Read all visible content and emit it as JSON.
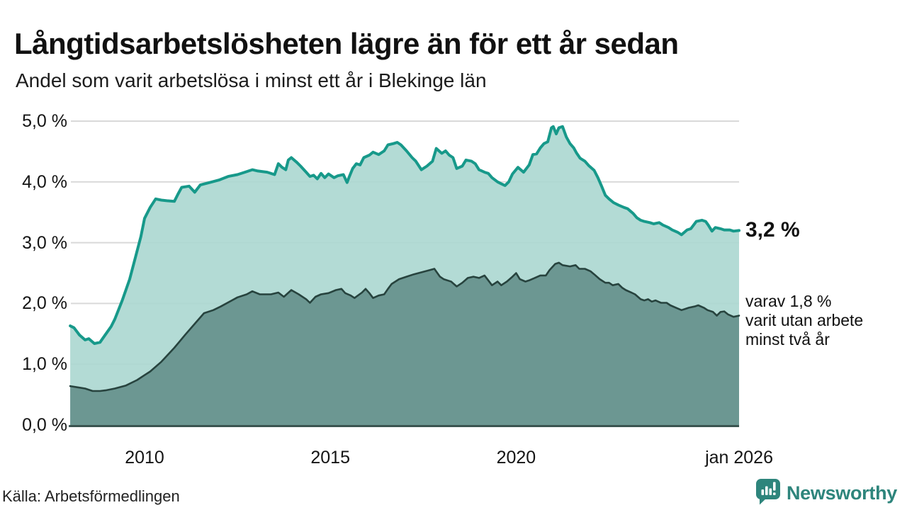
{
  "colors": {
    "accent_teal": "#17998a",
    "fill_light": "#abd7d0",
    "line_dark": "#27433e",
    "fill_dark": "#68948e",
    "baseline": "#3a5450",
    "gridline": "#d9d9d9",
    "brand_teal": "#2e857c",
    "text": "#1a1a1a"
  },
  "footer": {
    "source": "Källa: Arbetsförmedlingen",
    "brand": "Newsworthy"
  },
  "annotations": {
    "latest_total": "3,2 %",
    "varav_lines": [
      "varav 1,8 %",
      "varit utan arbete",
      "minst två år"
    ]
  },
  "chart_data": {
    "type": "area",
    "title": "Långtidsarbetslösheten lägre än för ett år sedan",
    "subtitle": "Andel som varit arbetslösa i minst ett år i Blekinge län",
    "xlabel": "",
    "ylabel": "",
    "xlim": [
      2008,
      2026
    ],
    "ylim": [
      0,
      5
    ],
    "grid": true,
    "legend_position": "none",
    "y_ticks": [
      "5,0 %",
      "4,0 %",
      "3,0 %",
      "2,0 %",
      "1,0 %",
      "0,0 %"
    ],
    "y_gridline_values": [
      5,
      4,
      3,
      2,
      1,
      0
    ],
    "x_ticks": [
      "2010",
      "2015",
      "2020",
      "jan 2026"
    ],
    "x_tick_years": [
      2010,
      2015,
      2020,
      2026
    ],
    "series": [
      {
        "name": "Andel arbetslösa minst ett år",
        "latest_value": 3.2,
        "latest_label": "3,2 %",
        "points": [
          [
            2008.0,
            1.63
          ],
          [
            2008.1,
            1.6
          ],
          [
            2008.25,
            1.48
          ],
          [
            2008.4,
            1.4
          ],
          [
            2008.5,
            1.42
          ],
          [
            2008.65,
            1.34
          ],
          [
            2008.8,
            1.36
          ],
          [
            2008.95,
            1.49
          ],
          [
            2009.1,
            1.62
          ],
          [
            2009.2,
            1.74
          ],
          [
            2009.4,
            2.05
          ],
          [
            2009.6,
            2.4
          ],
          [
            2009.75,
            2.75
          ],
          [
            2009.9,
            3.1
          ],
          [
            2010.0,
            3.4
          ],
          [
            2010.15,
            3.58
          ],
          [
            2010.3,
            3.72
          ],
          [
            2010.45,
            3.7
          ],
          [
            2010.6,
            3.69
          ],
          [
            2010.8,
            3.68
          ],
          [
            2010.9,
            3.8
          ],
          [
            2011.0,
            3.91
          ],
          [
            2011.2,
            3.93
          ],
          [
            2011.35,
            3.83
          ],
          [
            2011.5,
            3.95
          ],
          [
            2011.75,
            3.99
          ],
          [
            2012.0,
            4.03
          ],
          [
            2012.25,
            4.09
          ],
          [
            2012.5,
            4.12
          ],
          [
            2012.7,
            4.16
          ],
          [
            2012.9,
            4.2
          ],
          [
            2013.05,
            4.18
          ],
          [
            2013.3,
            4.16
          ],
          [
            2013.5,
            4.12
          ],
          [
            2013.6,
            4.3
          ],
          [
            2013.7,
            4.24
          ],
          [
            2013.8,
            4.2
          ],
          [
            2013.87,
            4.36
          ],
          [
            2013.95,
            4.4
          ],
          [
            2014.1,
            4.32
          ],
          [
            2014.2,
            4.26
          ],
          [
            2014.35,
            4.16
          ],
          [
            2014.45,
            4.09
          ],
          [
            2014.55,
            4.11
          ],
          [
            2014.65,
            4.05
          ],
          [
            2014.75,
            4.14
          ],
          [
            2014.85,
            4.07
          ],
          [
            2014.95,
            4.13
          ],
          [
            2015.1,
            4.07
          ],
          [
            2015.2,
            4.1
          ],
          [
            2015.35,
            4.12
          ],
          [
            2015.45,
            3.99
          ],
          [
            2015.5,
            4.07
          ],
          [
            2015.6,
            4.22
          ],
          [
            2015.7,
            4.3
          ],
          [
            2015.8,
            4.28
          ],
          [
            2015.9,
            4.4
          ],
          [
            2016.05,
            4.44
          ],
          [
            2016.15,
            4.49
          ],
          [
            2016.3,
            4.45
          ],
          [
            2016.45,
            4.51
          ],
          [
            2016.55,
            4.61
          ],
          [
            2016.7,
            4.63
          ],
          [
            2016.8,
            4.65
          ],
          [
            2016.9,
            4.61
          ],
          [
            2017.05,
            4.51
          ],
          [
            2017.2,
            4.4
          ],
          [
            2017.3,
            4.34
          ],
          [
            2017.45,
            4.2
          ],
          [
            2017.6,
            4.26
          ],
          [
            2017.75,
            4.34
          ],
          [
            2017.85,
            4.55
          ],
          [
            2018.0,
            4.47
          ],
          [
            2018.1,
            4.51
          ],
          [
            2018.2,
            4.44
          ],
          [
            2018.3,
            4.4
          ],
          [
            2018.4,
            4.22
          ],
          [
            2018.55,
            4.26
          ],
          [
            2018.65,
            4.36
          ],
          [
            2018.8,
            4.34
          ],
          [
            2018.9,
            4.3
          ],
          [
            2019.0,
            4.2
          ],
          [
            2019.15,
            4.16
          ],
          [
            2019.25,
            4.14
          ],
          [
            2019.35,
            4.07
          ],
          [
            2019.5,
            4.0
          ],
          [
            2019.6,
            3.97
          ],
          [
            2019.7,
            3.94
          ],
          [
            2019.8,
            4.0
          ],
          [
            2019.9,
            4.13
          ],
          [
            2020.05,
            4.24
          ],
          [
            2020.2,
            4.16
          ],
          [
            2020.35,
            4.28
          ],
          [
            2020.45,
            4.45
          ],
          [
            2020.55,
            4.46
          ],
          [
            2020.65,
            4.56
          ],
          [
            2020.75,
            4.63
          ],
          [
            2020.85,
            4.66
          ],
          [
            2020.95,
            4.89
          ],
          [
            2021.0,
            4.91
          ],
          [
            2021.08,
            4.79
          ],
          [
            2021.15,
            4.89
          ],
          [
            2021.25,
            4.91
          ],
          [
            2021.35,
            4.74
          ],
          [
            2021.45,
            4.63
          ],
          [
            2021.55,
            4.56
          ],
          [
            2021.62,
            4.48
          ],
          [
            2021.72,
            4.39
          ],
          [
            2021.85,
            4.34
          ],
          [
            2021.95,
            4.27
          ],
          [
            2022.1,
            4.19
          ],
          [
            2022.2,
            4.07
          ],
          [
            2022.3,
            3.93
          ],
          [
            2022.4,
            3.78
          ],
          [
            2022.5,
            3.72
          ],
          [
            2022.62,
            3.66
          ],
          [
            2022.75,
            3.62
          ],
          [
            2022.9,
            3.58
          ],
          [
            2023.0,
            3.56
          ],
          [
            2023.15,
            3.48
          ],
          [
            2023.25,
            3.41
          ],
          [
            2023.35,
            3.37
          ],
          [
            2023.45,
            3.35
          ],
          [
            2023.6,
            3.33
          ],
          [
            2023.7,
            3.31
          ],
          [
            2023.85,
            3.33
          ],
          [
            2023.95,
            3.29
          ],
          [
            2024.1,
            3.25
          ],
          [
            2024.2,
            3.21
          ],
          [
            2024.35,
            3.17
          ],
          [
            2024.45,
            3.13
          ],
          [
            2024.6,
            3.21
          ],
          [
            2024.7,
            3.23
          ],
          [
            2024.85,
            3.35
          ],
          [
            2025.0,
            3.37
          ],
          [
            2025.1,
            3.35
          ],
          [
            2025.17,
            3.29
          ],
          [
            2025.27,
            3.19
          ],
          [
            2025.36,
            3.25
          ],
          [
            2025.5,
            3.23
          ],
          [
            2025.6,
            3.21
          ],
          [
            2025.75,
            3.21
          ],
          [
            2025.85,
            3.19
          ],
          [
            2026.0,
            3.2
          ]
        ]
      },
      {
        "name": "varav utan arbete minst två år",
        "latest_value": 1.8,
        "latest_label": "1,8 %",
        "points": [
          [
            2008.0,
            0.64
          ],
          [
            2008.2,
            0.62
          ],
          [
            2008.4,
            0.6
          ],
          [
            2008.6,
            0.56
          ],
          [
            2008.8,
            0.56
          ],
          [
            2008.95,
            0.57
          ],
          [
            2009.2,
            0.6
          ],
          [
            2009.5,
            0.65
          ],
          [
            2009.8,
            0.74
          ],
          [
            2010.0,
            0.82
          ],
          [
            2010.15,
            0.88
          ],
          [
            2010.45,
            1.04
          ],
          [
            2010.8,
            1.27
          ],
          [
            2011.1,
            1.49
          ],
          [
            2011.4,
            1.7
          ],
          [
            2011.6,
            1.84
          ],
          [
            2011.85,
            1.89
          ],
          [
            2012.05,
            1.95
          ],
          [
            2012.35,
            2.05
          ],
          [
            2012.5,
            2.1
          ],
          [
            2012.75,
            2.15
          ],
          [
            2012.9,
            2.2
          ],
          [
            2013.1,
            2.15
          ],
          [
            2013.4,
            2.15
          ],
          [
            2013.6,
            2.18
          ],
          [
            2013.75,
            2.11
          ],
          [
            2013.95,
            2.22
          ],
          [
            2014.15,
            2.15
          ],
          [
            2014.35,
            2.07
          ],
          [
            2014.45,
            2.01
          ],
          [
            2014.6,
            2.11
          ],
          [
            2014.75,
            2.15
          ],
          [
            2014.95,
            2.17
          ],
          [
            2015.15,
            2.22
          ],
          [
            2015.3,
            2.24
          ],
          [
            2015.4,
            2.17
          ],
          [
            2015.55,
            2.13
          ],
          [
            2015.65,
            2.09
          ],
          [
            2015.85,
            2.18
          ],
          [
            2015.95,
            2.24
          ],
          [
            2016.05,
            2.17
          ],
          [
            2016.15,
            2.09
          ],
          [
            2016.3,
            2.13
          ],
          [
            2016.45,
            2.15
          ],
          [
            2016.55,
            2.24
          ],
          [
            2016.65,
            2.32
          ],
          [
            2016.85,
            2.4
          ],
          [
            2017.05,
            2.44
          ],
          [
            2017.25,
            2.48
          ],
          [
            2017.5,
            2.52
          ],
          [
            2017.8,
            2.57
          ],
          [
            2017.95,
            2.44
          ],
          [
            2018.05,
            2.4
          ],
          [
            2018.25,
            2.36
          ],
          [
            2018.4,
            2.28
          ],
          [
            2018.55,
            2.34
          ],
          [
            2018.7,
            2.42
          ],
          [
            2018.85,
            2.44
          ],
          [
            2019.0,
            2.42
          ],
          [
            2019.15,
            2.46
          ],
          [
            2019.25,
            2.38
          ],
          [
            2019.35,
            2.3
          ],
          [
            2019.5,
            2.36
          ],
          [
            2019.6,
            2.3
          ],
          [
            2019.75,
            2.36
          ],
          [
            2019.9,
            2.44
          ],
          [
            2020.0,
            2.5
          ],
          [
            2020.1,
            2.4
          ],
          [
            2020.25,
            2.36
          ],
          [
            2020.35,
            2.38
          ],
          [
            2020.5,
            2.42
          ],
          [
            2020.65,
            2.46
          ],
          [
            2020.8,
            2.46
          ],
          [
            2020.9,
            2.55
          ],
          [
            2021.05,
            2.65
          ],
          [
            2021.15,
            2.67
          ],
          [
            2021.25,
            2.63
          ],
          [
            2021.45,
            2.61
          ],
          [
            2021.6,
            2.63
          ],
          [
            2021.7,
            2.57
          ],
          [
            2021.85,
            2.57
          ],
          [
            2022.0,
            2.53
          ],
          [
            2022.1,
            2.48
          ],
          [
            2022.25,
            2.4
          ],
          [
            2022.4,
            2.34
          ],
          [
            2022.5,
            2.34
          ],
          [
            2022.6,
            2.3
          ],
          [
            2022.75,
            2.32
          ],
          [
            2022.85,
            2.26
          ],
          [
            2022.95,
            2.22
          ],
          [
            2023.1,
            2.18
          ],
          [
            2023.2,
            2.15
          ],
          [
            2023.35,
            2.07
          ],
          [
            2023.45,
            2.05
          ],
          [
            2023.55,
            2.07
          ],
          [
            2023.65,
            2.03
          ],
          [
            2023.75,
            2.05
          ],
          [
            2023.9,
            2.01
          ],
          [
            2024.05,
            2.01
          ],
          [
            2024.15,
            1.97
          ],
          [
            2024.3,
            1.93
          ],
          [
            2024.45,
            1.89
          ],
          [
            2024.55,
            1.91
          ],
          [
            2024.65,
            1.93
          ],
          [
            2024.8,
            1.95
          ],
          [
            2024.9,
            1.97
          ],
          [
            2025.05,
            1.93
          ],
          [
            2025.15,
            1.89
          ],
          [
            2025.3,
            1.86
          ],
          [
            2025.4,
            1.8
          ],
          [
            2025.5,
            1.86
          ],
          [
            2025.6,
            1.87
          ],
          [
            2025.7,
            1.82
          ],
          [
            2025.85,
            1.78
          ],
          [
            2026.0,
            1.8
          ]
        ]
      }
    ]
  }
}
